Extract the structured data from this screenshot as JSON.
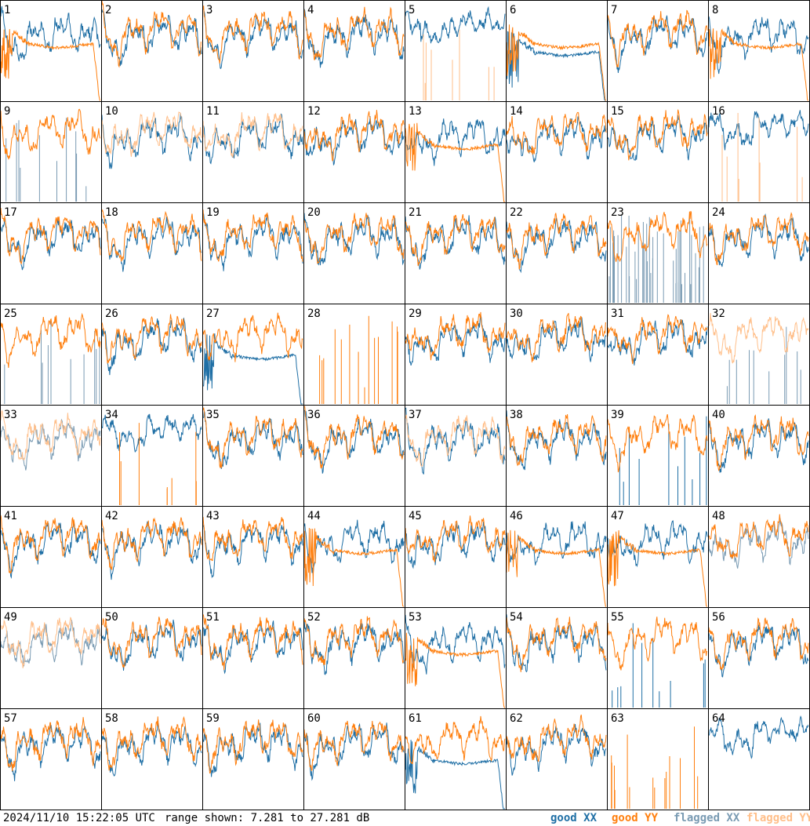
{
  "footer": {
    "timestamp": "2024/11/10 15:22:05 UTC",
    "range_text": "range shown: 7.281 to 27.281 dB"
  },
  "legend": {
    "good_xx": "good XX",
    "good_yy": "good YY",
    "flagged_xx": "flagged XX",
    "flagged_yy": "flagged YY"
  },
  "colors": {
    "good_xx": "#1f6fa5",
    "good_yy": "#ff7f0e",
    "flagged_xx": "#7a9bb3",
    "flagged_yy": "#ffbf8a",
    "frame": "#000000"
  },
  "chart_data": {
    "type": "line",
    "layout": "8x8 small multiples, one panel per tile",
    "y_range_db": [
      7.281,
      27.281
    ],
    "series_types": [
      "good XX",
      "good YY",
      "flagged XX",
      "flagged YY"
    ],
    "tiles": [
      {
        "n": 1,
        "x": "good",
        "y": "good",
        "profile": "x normal, y flat-decay"
      },
      {
        "n": 2,
        "x": "good",
        "y": "good",
        "profile": "normal"
      },
      {
        "n": 3,
        "x": "good",
        "y": "good",
        "profile": "normal"
      },
      {
        "n": 4,
        "x": "good",
        "y": "good",
        "profile": "normal"
      },
      {
        "n": 5,
        "x": "good",
        "y": "flagged",
        "profile": "x high, y spikes"
      },
      {
        "n": 6,
        "x": "good",
        "y": "good",
        "profile": "both flat-decay"
      },
      {
        "n": 7,
        "x": "good",
        "y": "good",
        "profile": "normal"
      },
      {
        "n": 8,
        "x": "good",
        "y": "good",
        "profile": "x normal, y flat-decay"
      },
      {
        "n": 9,
        "x": "flagged",
        "y": "good",
        "profile": "x spikes, y normal"
      },
      {
        "n": 10,
        "x": "good",
        "y": "flagged",
        "profile": "normal"
      },
      {
        "n": 11,
        "x": "good",
        "y": "flagged",
        "profile": "normal"
      },
      {
        "n": 12,
        "x": "good",
        "y": "good",
        "profile": "normal"
      },
      {
        "n": 13,
        "x": "good",
        "y": "good",
        "profile": "x normal, y flat-decay"
      },
      {
        "n": 14,
        "x": "good",
        "y": "good",
        "profile": "normal"
      },
      {
        "n": 15,
        "x": "good",
        "y": "good",
        "profile": "normal"
      },
      {
        "n": 16,
        "x": "good",
        "y": "flagged",
        "profile": "x high, y spikes"
      },
      {
        "n": 17,
        "x": "good",
        "y": "good",
        "profile": "normal"
      },
      {
        "n": 18,
        "x": "good",
        "y": "good",
        "profile": "normal"
      },
      {
        "n": 19,
        "x": "good",
        "y": "good",
        "profile": "normal"
      },
      {
        "n": 20,
        "x": "good",
        "y": "good",
        "profile": "normal"
      },
      {
        "n": 21,
        "x": "good",
        "y": "good",
        "profile": "normal"
      },
      {
        "n": 22,
        "x": "good",
        "y": "good",
        "profile": "normal"
      },
      {
        "n": 23,
        "x": "flagged",
        "y": "good",
        "profile": "x dense spikes, y normal"
      },
      {
        "n": 24,
        "x": "good",
        "y": "good",
        "profile": "normal"
      },
      {
        "n": 25,
        "x": "flagged",
        "y": "good",
        "profile": "x spikes, y normal"
      },
      {
        "n": 26,
        "x": "good",
        "y": "good",
        "profile": "normal"
      },
      {
        "n": 27,
        "x": "good",
        "y": "good",
        "profile": "x flat-decay, y normal"
      },
      {
        "n": 28,
        "x": "none",
        "y": "good",
        "profile": "y spikes"
      },
      {
        "n": 29,
        "x": "good",
        "y": "good",
        "profile": "normal"
      },
      {
        "n": 30,
        "x": "good",
        "y": "good",
        "profile": "normal"
      },
      {
        "n": 31,
        "x": "good",
        "y": "good",
        "profile": "normal"
      },
      {
        "n": 32,
        "x": "flagged",
        "y": "flagged",
        "profile": "normal, x spikes"
      },
      {
        "n": 33,
        "x": "flagged",
        "y": "flagged",
        "profile": "normal"
      },
      {
        "n": 34,
        "x": "good",
        "y": "good",
        "profile": "x high, y spikes"
      },
      {
        "n": 35,
        "x": "good",
        "y": "good",
        "profile": "normal"
      },
      {
        "n": 36,
        "x": "good",
        "y": "good",
        "profile": "normal"
      },
      {
        "n": 37,
        "x": "good",
        "y": "flagged",
        "profile": "normal"
      },
      {
        "n": 38,
        "x": "good",
        "y": "good",
        "profile": "normal"
      },
      {
        "n": 39,
        "x": "good",
        "y": "good",
        "profile": "x spikes, y normal"
      },
      {
        "n": 40,
        "x": "good",
        "y": "good",
        "profile": "normal"
      },
      {
        "n": 41,
        "x": "good",
        "y": "good",
        "profile": "normal"
      },
      {
        "n": 42,
        "x": "good",
        "y": "good",
        "profile": "normal"
      },
      {
        "n": 43,
        "x": "good",
        "y": "good",
        "profile": "normal"
      },
      {
        "n": 44,
        "x": "good",
        "y": "good",
        "profile": "x normal, y flat-decay"
      },
      {
        "n": 45,
        "x": "good",
        "y": "good",
        "profile": "normal"
      },
      {
        "n": 46,
        "x": "good",
        "y": "good",
        "profile": "x normal, y flat-decay"
      },
      {
        "n": 47,
        "x": "good",
        "y": "good",
        "profile": "x normal, y flat-decay"
      },
      {
        "n": 48,
        "x": "flagged",
        "y": "good",
        "profile": "normal"
      },
      {
        "n": 49,
        "x": "flagged",
        "y": "flagged",
        "profile": "normal"
      },
      {
        "n": 50,
        "x": "good",
        "y": "good",
        "profile": "normal"
      },
      {
        "n": 51,
        "x": "good",
        "y": "good",
        "profile": "normal"
      },
      {
        "n": 52,
        "x": "good",
        "y": "good",
        "profile": "normal"
      },
      {
        "n": 53,
        "x": "good",
        "y": "good",
        "profile": "x normal, y flat-decay"
      },
      {
        "n": 54,
        "x": "good",
        "y": "good",
        "profile": "normal"
      },
      {
        "n": 55,
        "x": "good",
        "y": "good",
        "profile": "x spikes, y normal"
      },
      {
        "n": 56,
        "x": "good",
        "y": "good",
        "profile": "normal"
      },
      {
        "n": 57,
        "x": "good",
        "y": "good",
        "profile": "normal"
      },
      {
        "n": 58,
        "x": "good",
        "y": "good",
        "profile": "normal"
      },
      {
        "n": 59,
        "x": "good",
        "y": "good",
        "profile": "normal"
      },
      {
        "n": 60,
        "x": "good",
        "y": "good",
        "profile": "normal"
      },
      {
        "n": 61,
        "x": "good",
        "y": "good",
        "profile": "x flat-decay, y normal"
      },
      {
        "n": 62,
        "x": "good",
        "y": "good",
        "profile": "normal"
      },
      {
        "n": 63,
        "x": "none",
        "y": "good",
        "profile": "y spikes"
      },
      {
        "n": 64,
        "x": "good",
        "y": "none",
        "profile": "x high"
      }
    ]
  }
}
